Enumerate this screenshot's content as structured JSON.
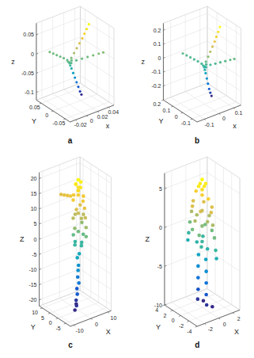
{
  "chart_data": [
    {
      "type": "scatter3d",
      "annotations": [
        "a"
      ],
      "xlabel": "x",
      "ylabel": "Y",
      "zlabel": "z",
      "grid": true,
      "xlim": [
        -0.03,
        0.05
      ],
      "ylim": [
        -0.07,
        0.07
      ],
      "zlim": [
        -0.12,
        0.08
      ],
      "xticks": [
        -0.02,
        0,
        0.02,
        0.04
      ],
      "yticks": [
        -0.05,
        0,
        0.05
      ],
      "zticks": [
        -0.1,
        -0.05,
        0,
        0.05
      ],
      "x": [
        0,
        0.003,
        0.008,
        0.013,
        0.018,
        0.023,
        0.027,
        0.031,
        0.035,
        0.002,
        0.005,
        0.009,
        0.013,
        0.017,
        0.021,
        0.025,
        0.028,
        0,
        -0.002,
        -0.004,
        -0.006,
        -0.008,
        -0.01,
        0.01,
        0.018,
        0.026,
        0.034,
        0.042,
        0.048,
        0.002,
        -0.002,
        0.001,
        0.003
      ],
      "y": [
        0,
        0,
        0,
        0,
        0,
        0,
        0,
        0,
        0,
        0.002,
        0.004,
        0.006,
        0.008,
        0.01,
        0.012,
        0.014,
        0.015,
        0.01,
        0.02,
        0.03,
        0.04,
        0.05,
        0.06,
        -0.005,
        -0.01,
        -0.015,
        -0.02,
        -0.025,
        -0.03,
        -0.002,
        0.002,
        0.003,
        -0.001
      ],
      "z": [
        -0.01,
        0,
        0.01,
        0.02,
        0.03,
        0.04,
        0.05,
        0.06,
        0.07,
        -0.02,
        -0.03,
        -0.045,
        -0.06,
        -0.075,
        -0.09,
        -0.105,
        -0.115,
        -0.008,
        -0.006,
        -0.005,
        -0.004,
        -0.003,
        -0.002,
        -0.008,
        -0.006,
        -0.004,
        -0.002,
        0,
        0.002,
        -0.012,
        -0.008,
        -0.014,
        -0.006
      ]
    },
    {
      "type": "scatter3d",
      "annotations": [
        "b"
      ],
      "xlabel": "x",
      "ylabel": "Y",
      "zlabel": "z",
      "grid": true,
      "xlim": [
        -0.15,
        0.15
      ],
      "ylim": [
        -0.15,
        0.2
      ],
      "zlim": [
        -0.3,
        0.25
      ],
      "xticks": [
        -0.1,
        0,
        0.1
      ],
      "yticks": [
        -0.1,
        0,
        0.1,
        0.2
      ],
      "zticks": [
        -0.2,
        -0.1,
        0,
        0.1,
        0.2
      ],
      "x": [
        0,
        0.009,
        0.024,
        0.039,
        0.054,
        0.069,
        0.081,
        0.093,
        0.105,
        0.006,
        0.015,
        0.027,
        0.039,
        0.051,
        0.063,
        0.075,
        0,
        -0.006,
        -0.012,
        -0.018,
        -0.024,
        -0.03,
        0.03,
        0.054,
        0.078,
        0.102,
        0.126,
        0.144,
        0.006,
        -0.006,
        0.003,
        0.009
      ],
      "y": [
        0,
        0,
        0,
        0,
        0,
        0,
        0,
        0,
        0,
        0.006,
        0.012,
        0.018,
        0.024,
        0.03,
        0.036,
        0.042,
        0.03,
        0.06,
        0.09,
        0.12,
        0.15,
        0.18,
        -0.015,
        -0.03,
        -0.045,
        -0.06,
        -0.075,
        -0.09,
        -0.006,
        0.006,
        0.009,
        -0.003
      ],
      "z": [
        -0.03,
        0,
        0.03,
        0.06,
        0.09,
        0.12,
        0.15,
        0.18,
        0.21,
        -0.06,
        -0.09,
        -0.135,
        -0.18,
        -0.225,
        -0.26,
        -0.29,
        -0.024,
        -0.018,
        -0.015,
        -0.012,
        -0.009,
        -0.006,
        -0.024,
        -0.018,
        -0.012,
        -0.006,
        0,
        0.006,
        -0.036,
        -0.024,
        -0.042,
        -0.018
      ]
    },
    {
      "type": "scatter3d",
      "annotations": [
        "c"
      ],
      "xlabel": "X",
      "ylabel": "Y",
      "zlabel": "Z",
      "grid": true,
      "xlim": [
        -12,
        12
      ],
      "ylim": [
        -8,
        12
      ],
      "zlim": [
        -22,
        22
      ],
      "xticks": [
        -10,
        0,
        10
      ],
      "yticks": [
        -5,
        0,
        5,
        10
      ],
      "zticks": [
        -20,
        -15,
        -10,
        -5,
        0,
        5,
        10,
        15,
        20
      ],
      "x": [
        0,
        1.5,
        -1.5,
        0,
        0,
        1,
        -1,
        0,
        0,
        3,
        -3,
        0,
        0,
        0,
        0,
        0,
        0,
        0,
        0,
        0,
        0,
        2,
        -2,
        3,
        -3,
        0,
        0,
        3,
        -3,
        2,
        -2,
        0,
        0,
        2,
        -2,
        0,
        0,
        1.5,
        1.5,
        1.5,
        1.5,
        1.5,
        -1.5,
        -1.5,
        -1.5,
        -1.5,
        -1.5,
        2,
        -2
      ],
      "y": [
        0,
        0,
        0,
        1.5,
        -1.5,
        1,
        -1,
        0,
        0,
        0,
        0,
        3,
        -3,
        5,
        7,
        9,
        11,
        -4,
        -4.5,
        -5,
        -5,
        1,
        -1,
        0,
        0,
        2,
        -2,
        1,
        -1,
        -1,
        1,
        0,
        0,
        0,
        0,
        2,
        -2,
        1,
        1.5,
        2,
        2.5,
        3,
        -1,
        -1.5,
        -2,
        -1,
        -0.5,
        3.5,
        0
      ],
      "z": [
        21,
        20,
        20,
        19,
        19,
        18,
        18,
        17.5,
        16,
        15,
        15,
        15,
        15,
        14,
        13.5,
        13,
        12.5,
        13,
        10,
        7,
        4,
        12,
        12,
        9,
        9,
        9,
        9,
        6,
        6,
        3,
        3,
        4,
        10,
        0,
        0,
        0,
        0,
        -4,
        -8,
        -12,
        -16,
        -20,
        -4,
        -8,
        -12,
        -16,
        -20,
        -21.5,
        -21.5
      ]
    },
    {
      "type": "scatter3d",
      "annotations": [
        "d"
      ],
      "xlabel": "X",
      "ylabel": "Y",
      "zlabel": "Z",
      "grid": true,
      "xlim": [
        -3,
        3
      ],
      "ylim": [
        -4,
        4
      ],
      "zlim": [
        -10,
        7
      ],
      "xticks": [
        -2,
        0,
        2
      ],
      "yticks": [
        -4,
        -2,
        0,
        2,
        4
      ],
      "zticks": [
        -10,
        -5,
        0,
        5
      ],
      "x": [
        0,
        0.5,
        -0.5,
        0,
        0,
        0,
        0,
        0,
        0,
        0,
        0,
        0,
        0,
        0,
        0,
        0,
        0,
        0,
        0,
        0.8,
        -0.8,
        0.8,
        -0.8,
        1,
        -1,
        0,
        0,
        1,
        -1,
        0.8,
        -0.8,
        0,
        0,
        0.8,
        -0.8,
        0,
        0,
        0,
        0,
        0,
        0,
        0,
        0,
        0,
        0,
        0,
        0,
        0,
        0.8,
        0.8
      ],
      "y": [
        0,
        0,
        0,
        0.5,
        -0.5,
        0,
        1.5,
        -1.5,
        0,
        2.2,
        2.6,
        3,
        3.3,
        3.5,
        -2.2,
        -2.6,
        -3,
        -3.3,
        -3.5,
        1,
        -1,
        -1,
        1,
        0,
        0,
        1.3,
        -1.3,
        1,
        -1,
        -1,
        1,
        0,
        0,
        1.2,
        -1.2,
        0,
        1.3,
        -1.3,
        0.9,
        1,
        1,
        1,
        1.1,
        -0.9,
        -1,
        -1,
        -1,
        -1.1,
        1.1,
        -1.1
      ],
      "z": [
        6.5,
        5.8,
        5.8,
        5.8,
        5.8,
        5.2,
        4.5,
        4.5,
        4.5,
        3,
        1.5,
        0,
        -1.5,
        -2.5,
        3,
        1.5,
        0,
        -1.5,
        -2.5,
        3,
        3,
        3,
        3,
        1.5,
        1.5,
        1.5,
        1.5,
        0,
        0,
        0,
        0,
        2.5,
        0.5,
        -1.5,
        -1.5,
        -1.5,
        -2,
        -2,
        -3.5,
        -5,
        -6.5,
        -8,
        -9.3,
        -3.5,
        -5,
        -6.5,
        -8,
        -9.3,
        -9.8,
        -9.8
      ]
    }
  ]
}
